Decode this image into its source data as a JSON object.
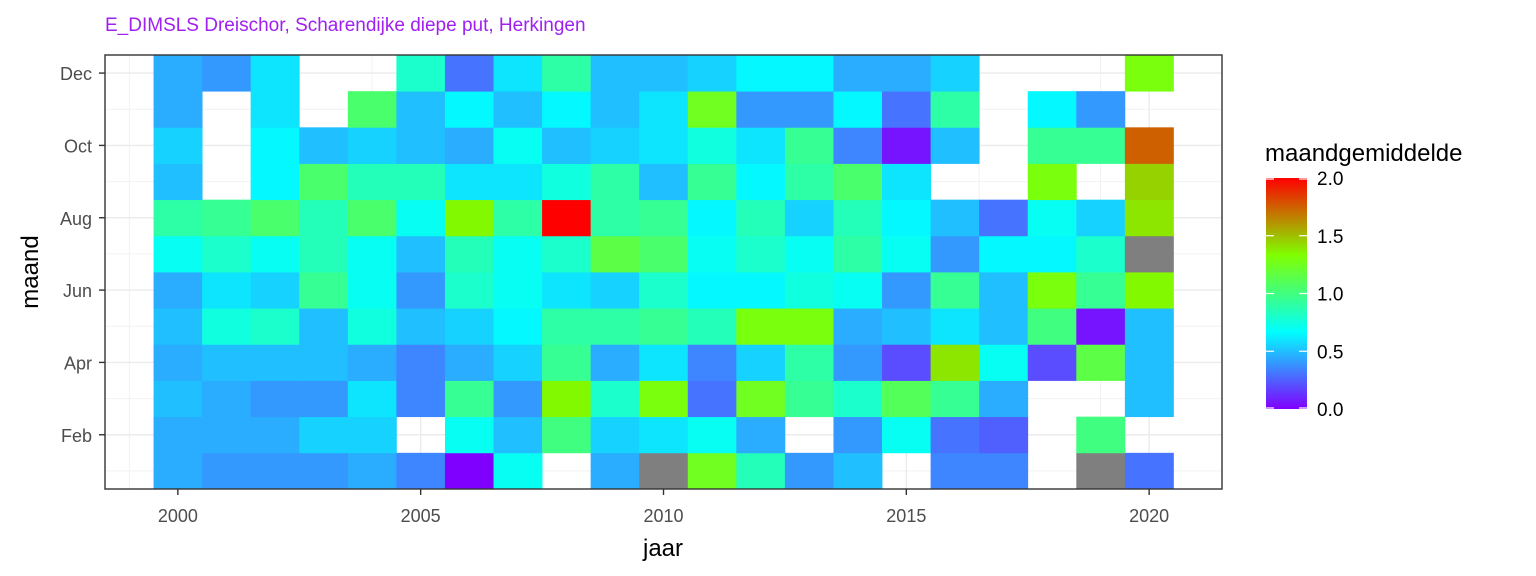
{
  "chart_data": {
    "type": "heatmap",
    "title": "E_DIMSLS Dreischor, Scharendijke diepe put, Herkingen",
    "xlabel": "jaar",
    "ylabel": "maand",
    "x_ticks": [
      "2000",
      "2005",
      "2010",
      "2015",
      "2020"
    ],
    "y_ticks": [
      "Feb",
      "Apr",
      "Jun",
      "Aug",
      "Oct",
      "Dec"
    ],
    "xlim": [
      1998.5,
      2021.5
    ],
    "ylim": [
      0.5,
      12.5
    ],
    "legend_title": "maandgemiddelde",
    "legend_ticks": [
      "0.0",
      "0.5",
      "1.0",
      "1.5",
      "2.0"
    ],
    "value_range": [
      0,
      2
    ],
    "na_color": "#7f7f7f",
    "title_color": "#a020f0",
    "colors": [
      "#8000ff",
      "#00ffff",
      "#80ff00",
      "#ff0000"
    ],
    "years": [
      2000,
      2001,
      2002,
      2003,
      2004,
      2005,
      2006,
      2007,
      2008,
      2009,
      2010,
      2011,
      2012,
      2013,
      2014,
      2015,
      2016,
      2017,
      2018,
      2019,
      2020
    ],
    "months": [
      1,
      2,
      3,
      4,
      5,
      6,
      7,
      8,
      9,
      10,
      11,
      12
    ],
    "values": [
      [
        0.45,
        0.4,
        0.4,
        0.4,
        0.45,
        0.35,
        0.0,
        0.7,
        null,
        0.45,
        "NA",
        1.25,
        0.85,
        0.4,
        0.5,
        null,
        0.35,
        0.35,
        null,
        "NA",
        0.3
      ],
      [
        0.45,
        0.45,
        0.45,
        0.55,
        0.55,
        null,
        0.7,
        0.5,
        1.0,
        0.55,
        0.6,
        0.7,
        0.45,
        null,
        0.4,
        0.7,
        0.3,
        0.25,
        null,
        1.0,
        null
      ],
      [
        0.5,
        0.45,
        0.4,
        0.4,
        0.6,
        0.35,
        0.95,
        0.4,
        1.35,
        0.8,
        1.3,
        0.3,
        1.25,
        0.95,
        0.8,
        1.1,
        0.95,
        0.45,
        null,
        null,
        0.5
      ],
      [
        0.45,
        0.5,
        0.5,
        0.5,
        0.45,
        0.35,
        0.45,
        0.55,
        0.95,
        0.45,
        0.6,
        0.35,
        0.55,
        0.9,
        0.4,
        0.2,
        1.4,
        0.7,
        0.2,
        1.15,
        0.5
      ],
      [
        0.5,
        0.75,
        0.8,
        0.5,
        0.75,
        0.5,
        0.55,
        0.65,
        0.9,
        0.9,
        0.95,
        0.85,
        1.3,
        1.3,
        0.45,
        0.5,
        0.6,
        0.5,
        1.0,
        0.05,
        0.5
      ],
      [
        0.45,
        0.6,
        0.55,
        0.95,
        0.7,
        0.4,
        0.8,
        0.7,
        0.6,
        0.55,
        0.8,
        0.65,
        0.65,
        0.75,
        0.7,
        0.4,
        0.95,
        0.5,
        1.3,
        0.95,
        1.35
      ],
      [
        0.7,
        0.8,
        0.7,
        0.85,
        0.7,
        0.5,
        0.85,
        0.7,
        0.8,
        1.15,
        1.05,
        0.7,
        0.8,
        0.7,
        0.9,
        0.7,
        0.4,
        0.65,
        0.65,
        0.8,
        "NA"
      ],
      [
        0.9,
        0.95,
        1.05,
        0.85,
        1.05,
        0.7,
        1.35,
        0.9,
        2.0,
        0.9,
        0.95,
        0.65,
        0.85,
        0.55,
        0.85,
        0.65,
        0.5,
        0.3,
        0.7,
        0.55,
        1.4
      ],
      [
        0.5,
        null,
        0.65,
        1.05,
        0.85,
        0.85,
        0.6,
        0.6,
        0.75,
        0.9,
        0.5,
        0.95,
        0.65,
        0.9,
        1.05,
        0.6,
        null,
        null,
        1.3,
        null,
        1.45
      ],
      [
        0.55,
        null,
        0.65,
        0.5,
        0.55,
        0.5,
        0.45,
        0.7,
        0.5,
        0.55,
        0.6,
        0.75,
        0.6,
        0.95,
        0.35,
        0.05,
        0.5,
        null,
        0.95,
        0.95,
        1.75
      ],
      [
        0.45,
        null,
        0.6,
        null,
        1.05,
        0.5,
        0.65,
        0.5,
        0.65,
        0.5,
        0.6,
        1.25,
        0.4,
        0.4,
        0.65,
        0.3,
        0.9,
        null,
        0.65,
        0.4,
        null
      ],
      [
        0.45,
        0.4,
        0.6,
        null,
        null,
        0.8,
        0.3,
        0.6,
        0.9,
        0.5,
        0.5,
        0.55,
        0.65,
        0.65,
        0.45,
        0.45,
        0.55,
        null,
        null,
        null,
        1.3
      ]
    ]
  }
}
